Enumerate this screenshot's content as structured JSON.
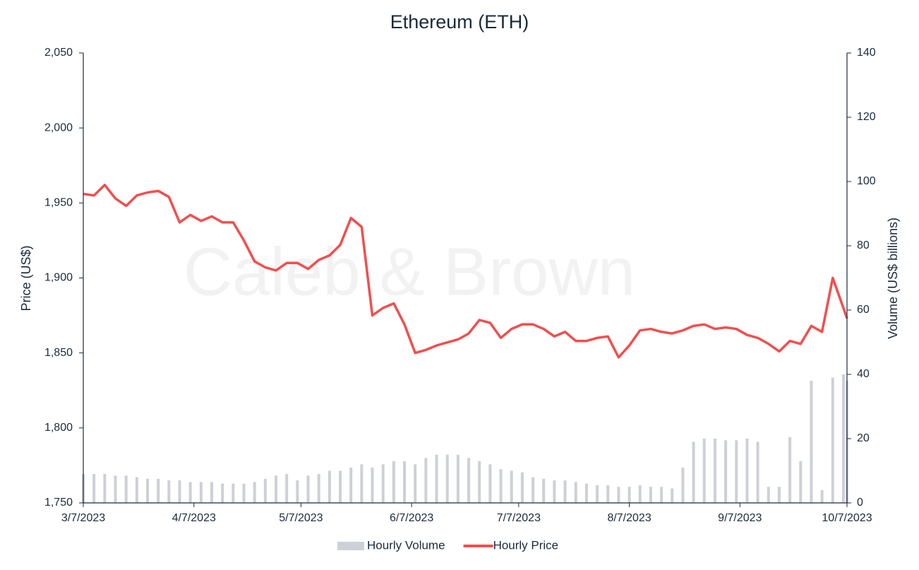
{
  "chart_data": {
    "type": "bar-line",
    "title": "Ethereum (ETH)",
    "watermark": "Caleb & Brown",
    "y_label": "Price (US$)",
    "y2_label": "Volume (US$ billions)",
    "x": [
      "3/7/2023",
      "3/10/2023",
      "3/13/2023",
      "3/16/2023",
      "3/19/2023",
      "3/22/2023",
      "3/25/2023",
      "3/28/2023",
      "3/31/2023",
      "4/3/2023",
      "4/6/2023",
      "4/9/2023",
      "4/12/2023",
      "4/15/2023",
      "4/18/2023",
      "4/21/2023",
      "4/24/2023",
      "4/27/2023",
      "4/30/2023",
      "5/3/2023",
      "5/6/2023",
      "5/9/2023",
      "5/12/2023",
      "5/15/2023",
      "5/18/2023",
      "5/21/2023",
      "5/24/2023",
      "5/27/2023",
      "5/30/2023",
      "6/2/2023",
      "6/5/2023",
      "6/8/2023",
      "6/11/2023",
      "6/14/2023",
      "6/17/2023",
      "6/20/2023",
      "6/23/2023",
      "6/26/2023",
      "6/29/2023",
      "7/2/2023",
      "7/5/2023",
      "7/8/2023",
      "7/11/2023",
      "7/14/2023",
      "7/17/2023",
      "7/20/2023",
      "7/23/2023",
      "7/26/2023",
      "7/29/2023",
      "8/1/2023",
      "8/4/2023",
      "8/7/2023",
      "8/10/2023",
      "8/13/2023",
      "8/16/2023",
      "8/19/2023",
      "8/22/2023",
      "8/25/2023",
      "8/28/2023",
      "8/31/2023",
      "9/3/2023",
      "9/6/2023",
      "9/9/2023",
      "9/12/2023",
      "9/15/2023",
      "9/18/2023",
      "9/21/2023",
      "9/24/2023",
      "9/27/2023",
      "9/30/2023",
      "10/3/2023",
      "10/6/2023",
      "10/7/2023"
    ],
    "xlim": [
      "3/7/2023",
      "10/7/2023"
    ],
    "xticks": [
      "3/7/2023",
      "4/7/2023",
      "5/7/2023",
      "6/7/2023",
      "7/7/2023",
      "8/7/2023",
      "9/7/2023",
      "10/7/2023"
    ],
    "ylim": [
      1750,
      2050
    ],
    "yticks": [
      {
        "value": 1750,
        "label": "1,750"
      },
      {
        "value": 1800,
        "label": "1,800"
      },
      {
        "value": 1850,
        "label": "1,850"
      },
      {
        "value": 1900,
        "label": "1,900"
      },
      {
        "value": 1950,
        "label": "1,950"
      },
      {
        "value": 2000,
        "label": "2,000"
      },
      {
        "value": 2050,
        "label": "2,050"
      }
    ],
    "y2lim": [
      0,
      140
    ],
    "y2ticks": [
      0,
      20,
      40,
      60,
      80,
      100,
      120,
      140
    ],
    "legend": "bottom",
    "series": [
      {
        "name": "Hourly Volume",
        "type": "bar",
        "axis": "y2",
        "color": "#cdd0d6",
        "values": [
          9,
          9,
          9,
          8.5,
          8.5,
          8,
          7.5,
          7.5,
          7,
          7,
          6.5,
          6.5,
          6.5,
          6,
          6,
          6,
          6.5,
          7.5,
          8.5,
          9,
          7,
          8.5,
          9,
          10,
          10,
          11,
          12,
          11,
          12,
          13,
          13,
          12,
          14,
          15,
          15,
          15,
          14,
          13,
          12,
          10.5,
          10,
          9.5,
          8,
          7.5,
          7,
          7,
          6.5,
          6,
          5.5,
          5.5,
          5,
          5,
          5.5,
          5,
          5,
          4.5,
          11,
          19,
          20,
          20,
          19.5,
          19.5,
          20,
          19,
          5,
          5,
          20.5,
          13,
          38,
          4,
          39,
          40,
          38
        ]
      },
      {
        "name": "Hourly Price",
        "type": "line",
        "axis": "y",
        "color": "#f24e4e",
        "values": [
          1956,
          1955,
          1962,
          1953,
          1948,
          1955,
          1957,
          1958,
          1954,
          1937,
          1942,
          1938,
          1941,
          1937,
          1937,
          1925,
          1911,
          1907,
          1905,
          1910,
          1910,
          1906,
          1912,
          1915,
          1922,
          1940,
          1934,
          1875,
          1880,
          1883,
          1869,
          1850,
          1852,
          1855,
          1857,
          1859,
          1863,
          1872,
          1870,
          1860,
          1866,
          1869,
          1869,
          1866,
          1861,
          1864,
          1858,
          1858,
          1860,
          1861,
          1847,
          1855,
          1865,
          1866,
          1864,
          1863,
          1865,
          1868,
          1869,
          1866,
          1867,
          1866,
          1862,
          1860,
          1856,
          1851,
          1858,
          1856,
          1868,
          1864,
          1900,
          1880,
          1873
        ]
      }
    ]
  }
}
